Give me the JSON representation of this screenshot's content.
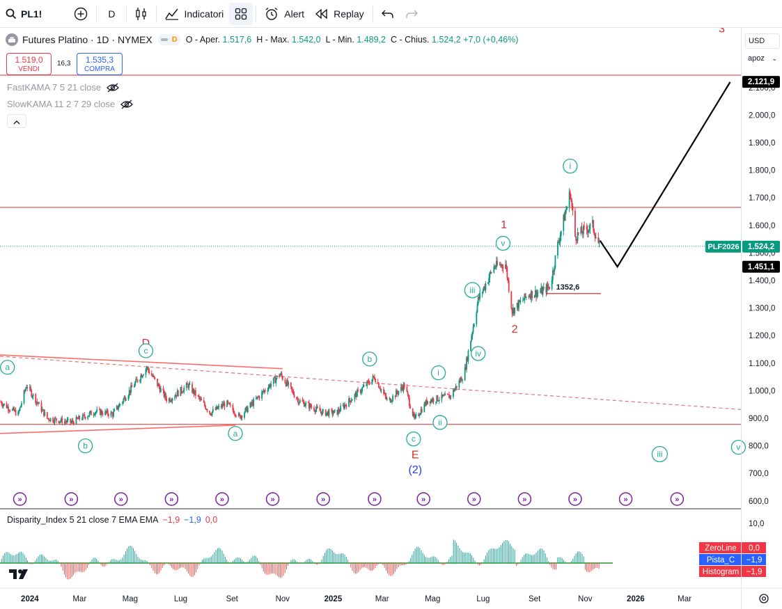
{
  "toolbar": {
    "symbol": "PL1!",
    "interval": "D",
    "indicators_label": "Indicatori",
    "alert_label": "Alert",
    "replay_label": "Replay"
  },
  "legend": {
    "title": "Futures Platino · 1D · NYMEX",
    "open_key": "O - Aper.",
    "open": "1.517,6",
    "high_key": "H - Max.",
    "high": "1.542,0",
    "low_key": "L - Min.",
    "low": "1.489,2",
    "close_key": "C - Chius.",
    "close": "1.524,2",
    "change": "+7,0 (+0,46%)",
    "pill_letter": "D"
  },
  "trade": {
    "sell_price": "1.519,0",
    "sell_label": "VENDI",
    "spread": "16,3",
    "buy_price": "1.535,3",
    "buy_label": "COMPRA"
  },
  "indicators": {
    "fast_kama": "FastKAMA 7 5 21 close",
    "slow_kama": "SlowKAMA 11 2 7 29 close"
  },
  "oscillator": {
    "name": "Disparity_Index 5 21 close 7 EMA EMA",
    "v1": "−1,9",
    "v2": "−1,9",
    "v3": "0,0",
    "zero_label": "ZeroLine",
    "zero_value": "0,0",
    "pista_label": "Pista_C",
    "pista_value": "−1,9",
    "hist_label": "Histogram",
    "hist_value": "−1,9",
    "top_tick": "10,0"
  },
  "scale": {
    "currency": "USD",
    "unit": "apoz"
  },
  "colors": {
    "up": "#089981",
    "down": "#f23645",
    "accent": "#2962ff",
    "wave_red": "#e53935",
    "wave_teal": "#22ab94",
    "pink": "#ff6b6b"
  },
  "chart_data": {
    "type": "candlestick",
    "symbol": "PL1!",
    "y_ticks": [
      "600,0",
      "700,0",
      "800,0",
      "900,0",
      "1.000,0",
      "1.100,0",
      "1.200,0",
      "1.300,0",
      "1.400,0",
      "1.500,0",
      "1.600,0",
      "1.700,0",
      "1.800,0",
      "1.900,0",
      "2.000,0",
      "2.100,0"
    ],
    "y_tick_values": [
      600,
      700,
      800,
      900,
      1000,
      1100,
      1200,
      1300,
      1400,
      1500,
      1600,
      1700,
      1800,
      1900,
      2000,
      2100
    ],
    "ylim": [
      575,
      2300
    ],
    "x_ticks": [
      "2024",
      "Mar",
      "Mag",
      "Lug",
      "Set",
      "Nov",
      "2025",
      "Mar",
      "Mag",
      "Lug",
      "Set",
      "Nov",
      "2026",
      "Mar"
    ],
    "x_tick_dates": [
      "2024-01-01",
      "2024-03-01",
      "2024-05-01",
      "2024-07-01",
      "2024-09-01",
      "2024-11-01",
      "2025-01-01",
      "2025-03-01",
      "2025-05-01",
      "2025-07-01",
      "2025-09-01",
      "2025-11-01",
      "2026-01-01",
      "2026-03-01"
    ],
    "xlim": [
      "2023-11-26",
      "2026-05-08"
    ],
    "price_path": [
      [
        "2023-11-26",
        960
      ],
      [
        "2023-12-18",
        915
      ],
      [
        "2023-12-28",
        1020
      ],
      [
        "2024-01-22",
        900
      ],
      [
        "2024-02-20",
        885
      ],
      [
        "2024-03-20",
        925
      ],
      [
        "2024-04-10",
        915
      ],
      [
        "2024-05-21",
        1085
      ],
      [
        "2024-06-15",
        965
      ],
      [
        "2024-07-10",
        1020
      ],
      [
        "2024-08-06",
        920
      ],
      [
        "2024-08-25",
        955
      ],
      [
        "2024-09-10",
        905
      ],
      [
        "2024-10-29",
        1060
      ],
      [
        "2024-11-20",
        965
      ],
      [
        "2024-12-20",
        920
      ],
      [
        "2025-01-05",
        920
      ],
      [
        "2025-02-20",
        1050
      ],
      [
        "2025-03-08",
        960
      ],
      [
        "2025-03-28",
        1020
      ],
      [
        "2025-04-09",
        895
      ],
      [
        "2025-04-25",
        965
      ],
      [
        "2025-05-22",
        980
      ],
      [
        "2025-06-08",
        1060
      ],
      [
        "2025-06-25",
        1330
      ],
      [
        "2025-07-14",
        1450
      ],
      [
        "2025-07-28",
        1460
      ],
      [
        "2025-08-05",
        1290
      ],
      [
        "2025-08-25",
        1350
      ],
      [
        "2025-09-10",
        1360
      ],
      [
        "2025-09-20",
        1380
      ],
      [
        "2025-09-29",
        1530
      ],
      [
        "2025-10-14",
        1720
      ],
      [
        "2025-10-20",
        1560
      ],
      [
        "2025-11-10",
        1600
      ],
      [
        "2025-11-18",
        1524
      ]
    ],
    "last_price": "1.524,2",
    "series_label": "PLF2026",
    "target_price": "2.121,9",
    "projection_low": "1.451,1",
    "projection_path": [
      [
        "2025-11-19",
        1545
      ],
      [
        "2025-12-10",
        1450
      ],
      [
        "2026-04-25",
        2120
      ]
    ],
    "level_label": "1352,6",
    "horizontal_lines": [
      2145,
      1665,
      878
    ],
    "triangle_upper": [
      [
        "2023-11-26",
        1130
      ],
      [
        "2024-11-01",
        1080
      ]
    ],
    "triangle_lower": [
      [
        "2023-11-26",
        845
      ],
      [
        "2024-09-05",
        875
      ]
    ],
    "trend_dashed": [
      [
        "2023-11-26",
        1125
      ],
      [
        "2026-05-08",
        932
      ]
    ],
    "major_wave_labels": [
      {
        "text": "D",
        "date": "2024-05-20",
        "price": 1160
      },
      {
        "text": "E",
        "date": "2025-04-10",
        "price": 755
      },
      {
        "text": "(2)",
        "date": "2025-04-10",
        "price": 700
      },
      {
        "text": "1",
        "date": "2025-07-26",
        "price": 1590
      },
      {
        "text": "2",
        "date": "2025-08-08",
        "price": 1210
      },
      {
        "text": "3",
        "date": "2026-04-15",
        "price": 2300
      }
    ],
    "minor_wave_labels": [
      {
        "text": "a",
        "date": "2023-12-05",
        "price": 1085
      },
      {
        "text": "b",
        "date": "2024-03-08",
        "price": 800
      },
      {
        "text": "c",
        "date": "2024-05-20",
        "price": 1145
      },
      {
        "text": "a",
        "date": "2024-09-05",
        "price": 845
      },
      {
        "text": "b",
        "date": "2025-02-14",
        "price": 1115
      },
      {
        "text": "c",
        "date": "2025-04-08",
        "price": 825
      },
      {
        "text": "i",
        "date": "2025-05-08",
        "price": 1065
      },
      {
        "text": "ii",
        "date": "2025-05-10",
        "price": 885
      },
      {
        "text": "iii",
        "date": "2025-06-18",
        "price": 1365
      },
      {
        "text": "iv",
        "date": "2025-06-25",
        "price": 1135
      },
      {
        "text": "v",
        "date": "2025-07-25",
        "price": 1535
      },
      {
        "text": "i",
        "date": "2025-10-14",
        "price": 1815
      },
      {
        "text": "iii",
        "date": "2026-01-30",
        "price": 770
      },
      {
        "text": "v",
        "date": "2026-05-05",
        "price": 795
      }
    ],
    "event_markers": [
      "2023-12-20",
      "2024-02-20",
      "2024-04-20",
      "2024-06-20",
      "2024-08-20",
      "2024-10-20",
      "2024-12-20",
      "2025-02-20",
      "2025-04-20",
      "2025-06-20",
      "2025-08-20",
      "2025-10-20",
      "2025-12-20",
      "2026-02-20"
    ],
    "oscillator_ticks": [
      "10,0"
    ]
  }
}
